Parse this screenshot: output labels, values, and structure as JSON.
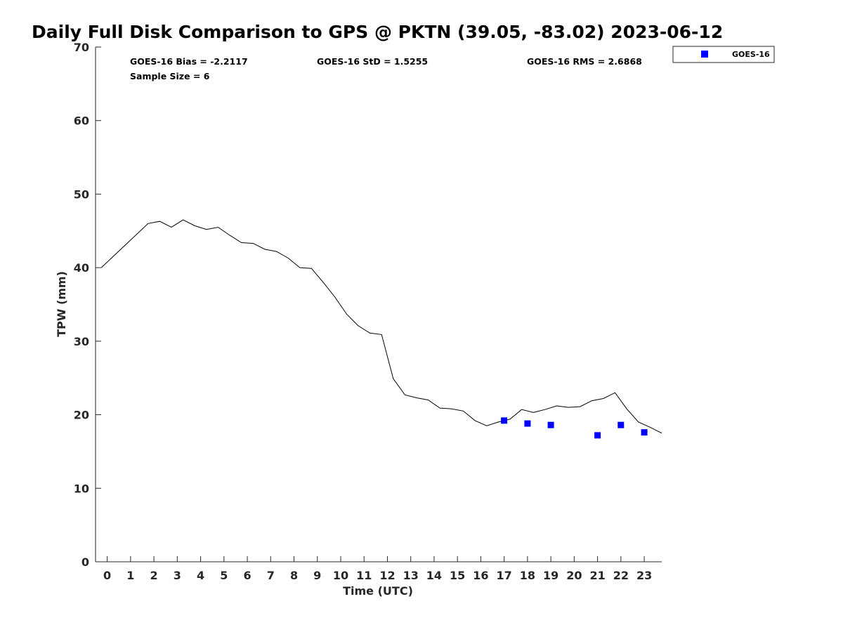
{
  "chart_data": {
    "type": "line",
    "title": "Daily Full Disk Comparison to GPS @ PKTN (39.05, -83.02) 2023-06-12",
    "xlabel": "Time (UTC)",
    "ylabel": "TPW (mm)",
    "xlim": [
      -0.5,
      23.75
    ],
    "ylim": [
      0,
      70
    ],
    "x_ticks": [
      0,
      1,
      2,
      3,
      4,
      5,
      6,
      7,
      8,
      9,
      10,
      11,
      12,
      13,
      14,
      15,
      16,
      17,
      18,
      19,
      20,
      21,
      22,
      23
    ],
    "y_ticks": [
      0,
      10,
      20,
      30,
      40,
      50,
      60,
      70
    ],
    "grid": false,
    "legend": {
      "placement": "top-right",
      "entries": [
        "GOES-16"
      ]
    },
    "stats": {
      "bias": "GOES-16 Bias = -2.2117",
      "std": "GOES-16 StD = 1.5255",
      "rms": "GOES-16 RMS = 2.6868",
      "sample_size": "Sample Size = 6"
    },
    "series": [
      {
        "kind": "line",
        "color": "#000000",
        "x": [
          -0.25,
          0.25,
          0.75,
          1.25,
          1.75,
          2.25,
          2.75,
          3.25,
          3.75,
          4.25,
          4.75,
          5.25,
          5.75,
          6.25,
          6.75,
          7.25,
          7.75,
          8.25,
          8.75,
          9.25,
          9.75,
          10.25,
          10.75,
          11.25,
          11.75,
          12.25,
          12.75,
          13.25,
          13.75,
          14.25,
          14.75,
          15.25,
          15.75,
          16.25,
          16.75,
          17.25,
          17.75,
          18.25,
          18.75,
          19.25,
          19.75,
          20.25,
          20.75,
          21.25,
          21.75,
          22.25,
          22.75,
          23.25,
          23.75
        ],
        "y": [
          40.0,
          41.5,
          43.0,
          44.5,
          46.0,
          46.3,
          45.5,
          46.5,
          45.7,
          45.2,
          45.5,
          44.4,
          43.4,
          43.3,
          42.5,
          42.2,
          41.3,
          40.0,
          39.9,
          38.0,
          36.0,
          33.7,
          32.1,
          31.1,
          30.9,
          24.9,
          22.7,
          22.3,
          22.0,
          20.9,
          20.8,
          20.5,
          19.2,
          18.5,
          19.0,
          19.4,
          20.7,
          20.3,
          20.7,
          21.2,
          21.0,
          21.1,
          21.9,
          22.2,
          23.0,
          20.8,
          19.0,
          18.3,
          17.5
        ]
      },
      {
        "name": "GOES-16",
        "kind": "scatter",
        "color": "#0000ff",
        "x": [
          17,
          18,
          19,
          21,
          22,
          23
        ],
        "y": [
          19.2,
          18.8,
          18.6,
          17.2,
          18.6,
          17.6
        ]
      }
    ]
  }
}
